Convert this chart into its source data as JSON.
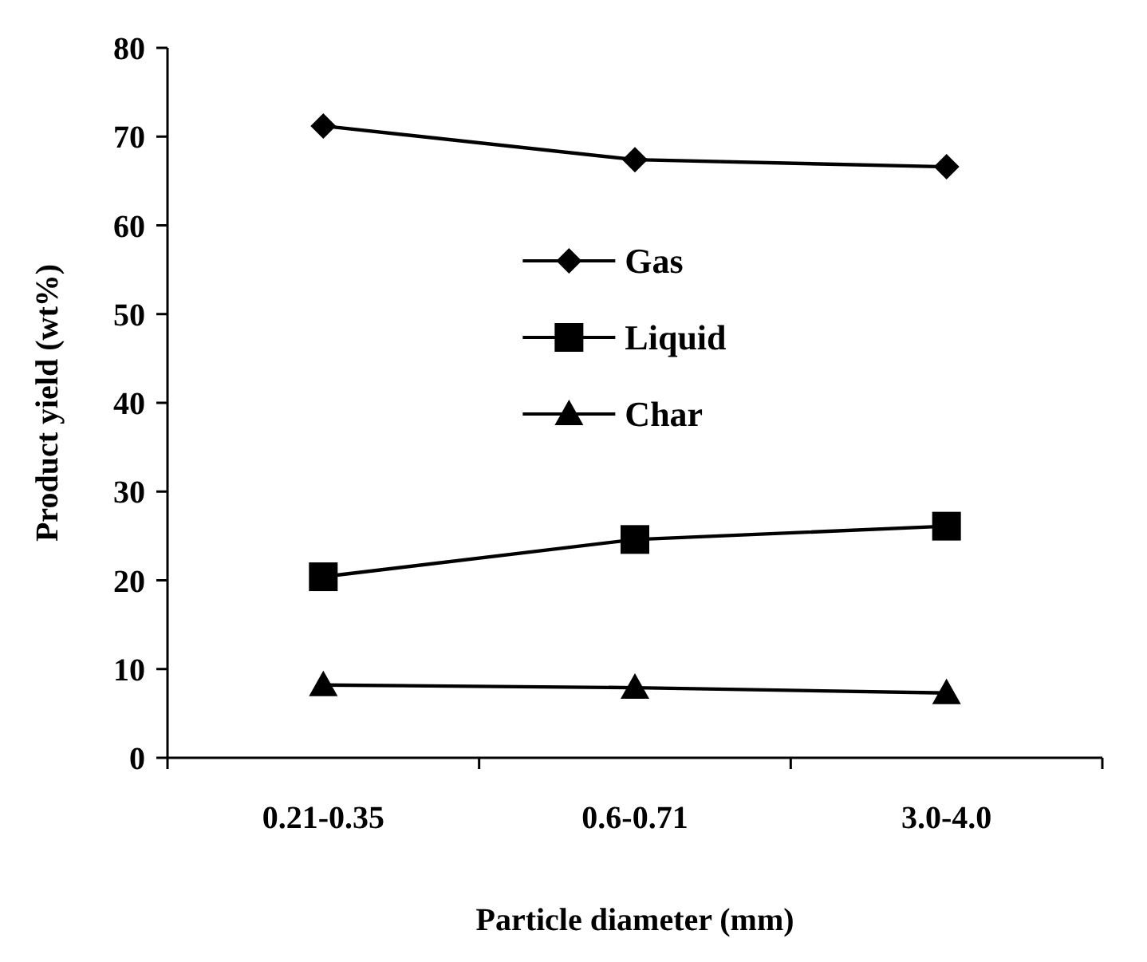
{
  "chart_data": {
    "type": "line",
    "xlabel": "Particle diameter (mm)",
    "ylabel": "Product yield (wt%)",
    "categories": [
      "0.21-0.35",
      "0.6-0.71",
      "3.0-4.0"
    ],
    "ylim": [
      0,
      80
    ],
    "yticks": [
      0,
      10,
      20,
      30,
      40,
      50,
      60,
      70,
      80
    ],
    "grid": false,
    "legend": "center",
    "series": [
      {
        "name": "Gas",
        "color": "#000000",
        "marker": "diamond",
        "values": [
          71.2,
          67.4,
          66.6
        ]
      },
      {
        "name": "Liquid",
        "color": "#000000",
        "marker": "square",
        "values": [
          20.4,
          24.6,
          26.1
        ]
      },
      {
        "name": "Char",
        "color": "#000000",
        "marker": "triangle",
        "values": [
          8.2,
          7.9,
          7.3
        ]
      }
    ]
  }
}
